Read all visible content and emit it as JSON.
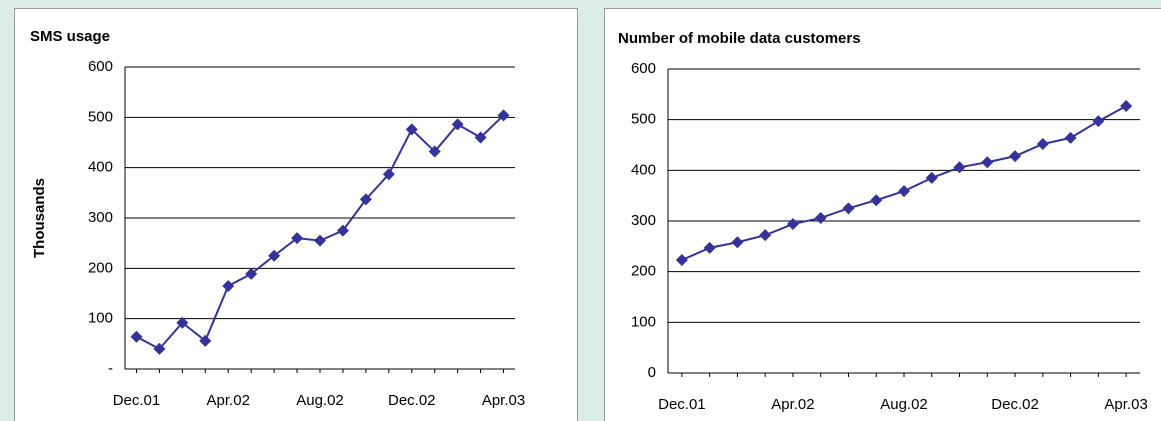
{
  "chart_data": [
    {
      "type": "line",
      "title": "SMS usage",
      "y_label": "Thousands",
      "categories": [
        "Dec.01",
        null,
        null,
        null,
        "Apr.02",
        null,
        null,
        null,
        "Aug.02",
        null,
        null,
        null,
        "Dec.02",
        null,
        null,
        null,
        "Apr.03"
      ],
      "series": [
        {
          "name": "SMS usage",
          "color": "#333399",
          "values": [
            64,
            40,
            92,
            56,
            165,
            189,
            225,
            260,
            255,
            275,
            337,
            387,
            476,
            432,
            486,
            460,
            504
          ]
        }
      ],
      "ylim": [
        0,
        600
      ],
      "yticks": [
        {
          "value": 0,
          "label": "-"
        },
        100,
        200,
        300,
        400,
        500,
        600
      ],
      "grid": true
    },
    {
      "type": "line",
      "title": "Number of mobile data customers",
      "categories": [
        "Dec.01",
        null,
        null,
        null,
        "Apr.02",
        null,
        null,
        null,
        "Aug.02",
        null,
        null,
        null,
        "Dec.02",
        null,
        null,
        null,
        "Apr.03"
      ],
      "series": [
        {
          "name": "Number of mobile data customers",
          "color": "#333399",
          "values": [
            223,
            247,
            258,
            272,
            294,
            306,
            325,
            341,
            359,
            385,
            406,
            416,
            428,
            452,
            464,
            497,
            527
          ]
        }
      ],
      "ylim": [
        0,
        600
      ],
      "yticks": [
        0,
        100,
        200,
        300,
        400,
        500,
        600
      ],
      "grid": true
    }
  ]
}
